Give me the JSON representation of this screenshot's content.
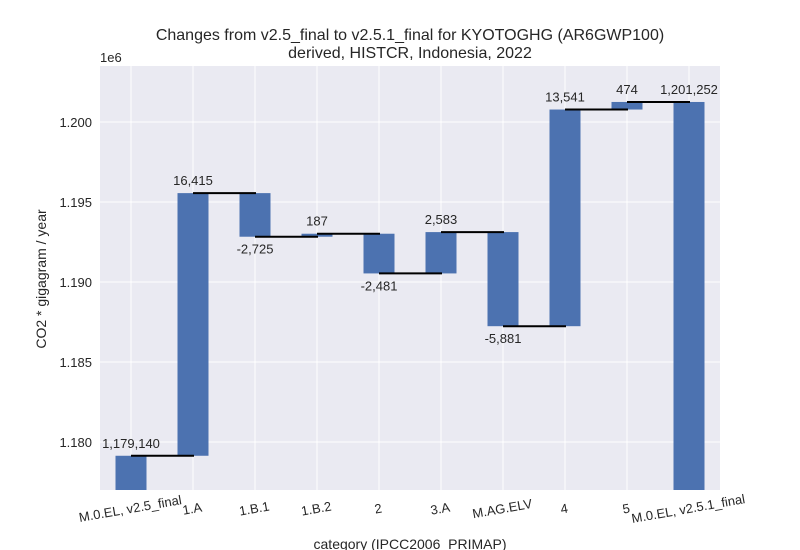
{
  "chart_data": {
    "type": "bar",
    "subtype": "waterfall",
    "title": "Changes from v2.5_final to v2.5.1_final for KYOTOGHG (AR6GWP100)",
    "subtitle": "derived, HISTCR, Indonesia, 2022",
    "xlabel": "category (IPCC2006_PRIMAP)",
    "ylabel": "CO2 * gigagram / year",
    "y_offset_label": "1e6",
    "ylim": [
      1177000,
      1203500
    ],
    "yticks": [
      1180000,
      1185000,
      1190000,
      1195000,
      1200000
    ],
    "ytick_labels": [
      "1.180",
      "1.185",
      "1.190",
      "1.195",
      "1.200"
    ],
    "grid": true,
    "bar_color": "#4c72b0",
    "background_color": "#eaeaf2",
    "categories": [
      "M.0.EL, v2.5_final",
      "1.A",
      "1.B.1",
      "1.B.2",
      "2",
      "3.A",
      "M.AG.ELV",
      "4",
      "5",
      "M.0.EL, v2.5.1_final"
    ],
    "values": [
      1179140,
      16415,
      -2725,
      187,
      -2481,
      2583,
      -5881,
      13541,
      474,
      1201252
    ],
    "bar_kinds": [
      "total",
      "delta",
      "delta",
      "delta",
      "delta",
      "delta",
      "delta",
      "delta",
      "delta",
      "total"
    ],
    "data_labels": [
      "1,179,140",
      "16,415",
      "-2,725",
      "187",
      "-2,481",
      "2,583",
      "-5,881",
      "13,541",
      "474",
      "1,201,252"
    ]
  }
}
